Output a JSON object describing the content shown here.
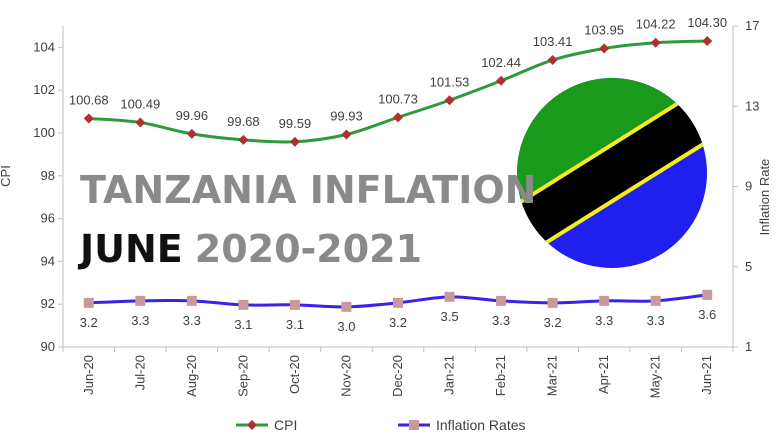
{
  "overlay": {
    "line1": "TANZANIA INFLATION",
    "line2_part1": "JUNE",
    "line2_part2": "2020-2021",
    "colors": {
      "line1": "#8a8a8a",
      "part1": "#111111",
      "part2": "#8a8a8a"
    }
  },
  "flag": {
    "icon": "tanzania-flag-icon",
    "colors": {
      "green": "#1a9a1a",
      "black": "#000000",
      "yellow": "#f5ee1a",
      "blue": "#1f1ff0"
    }
  },
  "chart_data": {
    "type": "line",
    "categories": [
      "Jun-20",
      "Jul-20",
      "Aug-20",
      "Sep-20",
      "Oct-20",
      "Nov-20",
      "Dec-20",
      "Jan-21",
      "Feb-21",
      "Mar-21",
      "Apr-21",
      "May-21",
      "Jun-21"
    ],
    "series": [
      {
        "name": "CPI",
        "axis": "left",
        "color": "#2e9b3b",
        "marker": "diamond",
        "marker_color": "#b03030",
        "values": [
          100.68,
          100.49,
          99.96,
          99.68,
          99.59,
          99.93,
          100.73,
          101.53,
          102.44,
          103.41,
          103.95,
          104.22,
          104.3
        ],
        "labels": [
          "100.68",
          "100.49",
          "99.96",
          "99.68",
          "99.59",
          "99.93",
          "100.73",
          "101.53",
          "102.44",
          "103.41",
          "103.95",
          "104.22",
          "104.30"
        ]
      },
      {
        "name": "Inflation Rates",
        "axis": "right",
        "color": "#3a22e8",
        "marker": "square",
        "marker_color": "#c99a9a",
        "values": [
          3.2,
          3.3,
          3.3,
          3.1,
          3.1,
          3.0,
          3.2,
          3.5,
          3.3,
          3.2,
          3.3,
          3.3,
          3.6
        ],
        "labels": [
          "3.2",
          "3.3",
          "3.3",
          "3.1",
          "3.1",
          "3.0",
          "3.2",
          "3.5",
          "3.3",
          "3.2",
          "3.3",
          "3.3",
          "3.6"
        ]
      }
    ],
    "ylabel": "CPI",
    "y2label": "Inflation Rate",
    "ylim": [
      90,
      105
    ],
    "yticks": [
      "90",
      "92",
      "94",
      "96",
      "98",
      "100",
      "102",
      "104"
    ],
    "y2lim": [
      1,
      17
    ],
    "y2ticks": [
      "1",
      "5",
      "9",
      "13",
      "17"
    ],
    "grid": false,
    "legend_position": "bottom"
  }
}
